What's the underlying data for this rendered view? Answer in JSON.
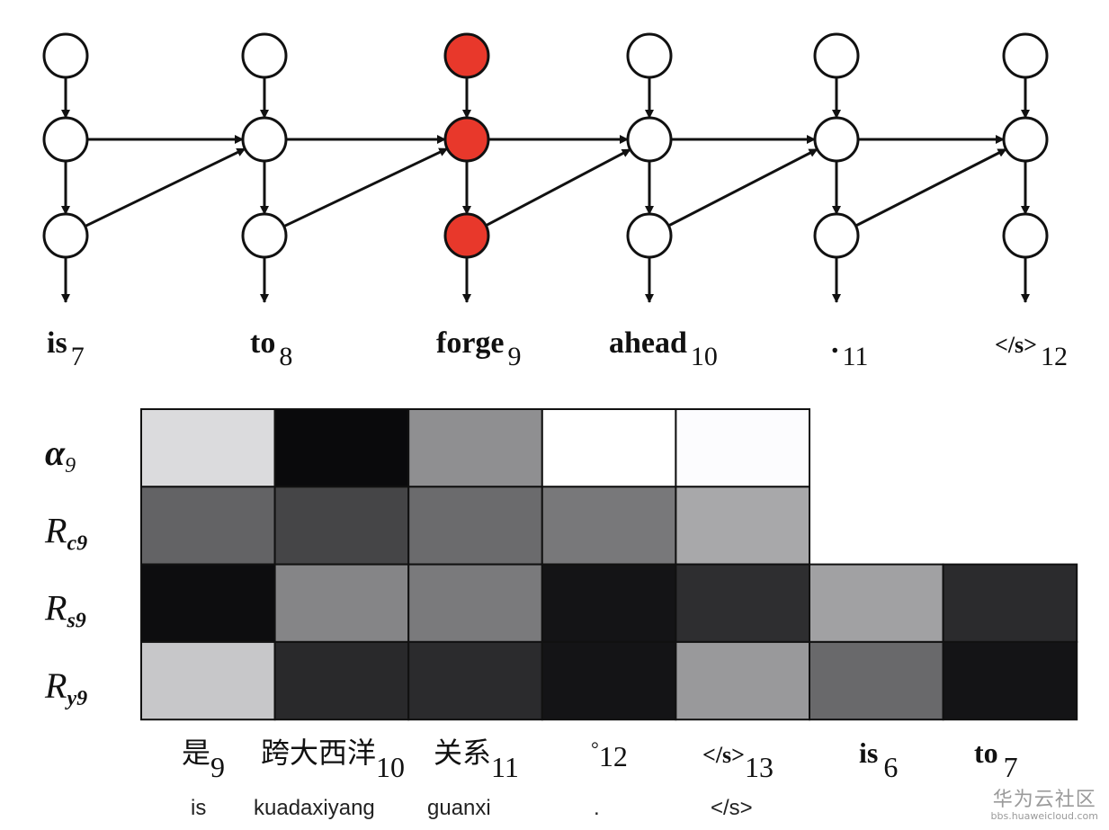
{
  "network": {
    "columns": [
      {
        "word": "is",
        "index": "7",
        "highlighted": false
      },
      {
        "word": "to",
        "index": "8",
        "highlighted": false
      },
      {
        "word": "forge",
        "index": "9",
        "highlighted": true
      },
      {
        "word": "ahead",
        "index": "10",
        "highlighted": false
      },
      {
        "word": ".",
        "index": "11",
        "highlighted": false
      },
      {
        "word": "</s>",
        "index": "12",
        "highlighted": false
      }
    ],
    "highlight_color": "#e8382b"
  },
  "chart_data": {
    "type": "heatmap",
    "rows": [
      {
        "label": "α",
        "sub": "9"
      },
      {
        "label": "R",
        "sub": "c9"
      },
      {
        "label": "R",
        "sub": "s9"
      },
      {
        "label": "R",
        "sub": "y9"
      }
    ],
    "columns": [
      {
        "word": "是",
        "index": "9",
        "pinyin": "is"
      },
      {
        "word": "跨大西洋",
        "index": "10",
        "pinyin": "kuadaxiyang"
      },
      {
        "word": "关系",
        "index": "11",
        "pinyin": "guanxi"
      },
      {
        "word": "°",
        "index": "12",
        "pinyin": "."
      },
      {
        "word": "</s>",
        "index": "13",
        "pinyin": "</s>"
      },
      {
        "word": "is",
        "index": "6",
        "pinyin": ""
      },
      {
        "word": "to",
        "index": "7",
        "pinyin": ""
      }
    ],
    "value_meaning": "darkness 0 (white) to 1 (black)",
    "values": [
      [
        0.14,
        0.96,
        0.44,
        0.0,
        0.01,
        null,
        null
      ],
      [
        0.61,
        0.73,
        0.58,
        0.53,
        0.34,
        null,
        null
      ],
      [
        0.95,
        0.48,
        0.52,
        0.92,
        0.82,
        0.37,
        0.83
      ],
      [
        0.22,
        0.84,
        0.83,
        0.92,
        0.4,
        0.59,
        0.92
      ]
    ]
  },
  "watermark": {
    "name": "华为云社区",
    "url": "bbs.huaweicloud.com"
  }
}
